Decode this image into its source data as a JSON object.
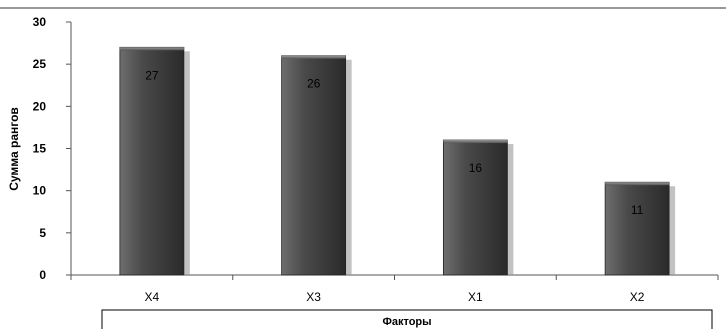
{
  "chart_data": {
    "type": "bar",
    "title": "",
    "xlabel": "Факторы",
    "ylabel": "Сумма рангов",
    "categories": [
      "X4",
      "X3",
      "X1",
      "X2"
    ],
    "values": [
      27,
      26,
      16,
      11
    ],
    "data_labels": [
      "27",
      "26",
      "16",
      "11"
    ],
    "ylim": [
      0,
      30
    ],
    "yticks": [
      0,
      5,
      10,
      15,
      20,
      25,
      30
    ],
    "grid": false,
    "legend": "none",
    "bar_color": "#4a4a4a"
  }
}
